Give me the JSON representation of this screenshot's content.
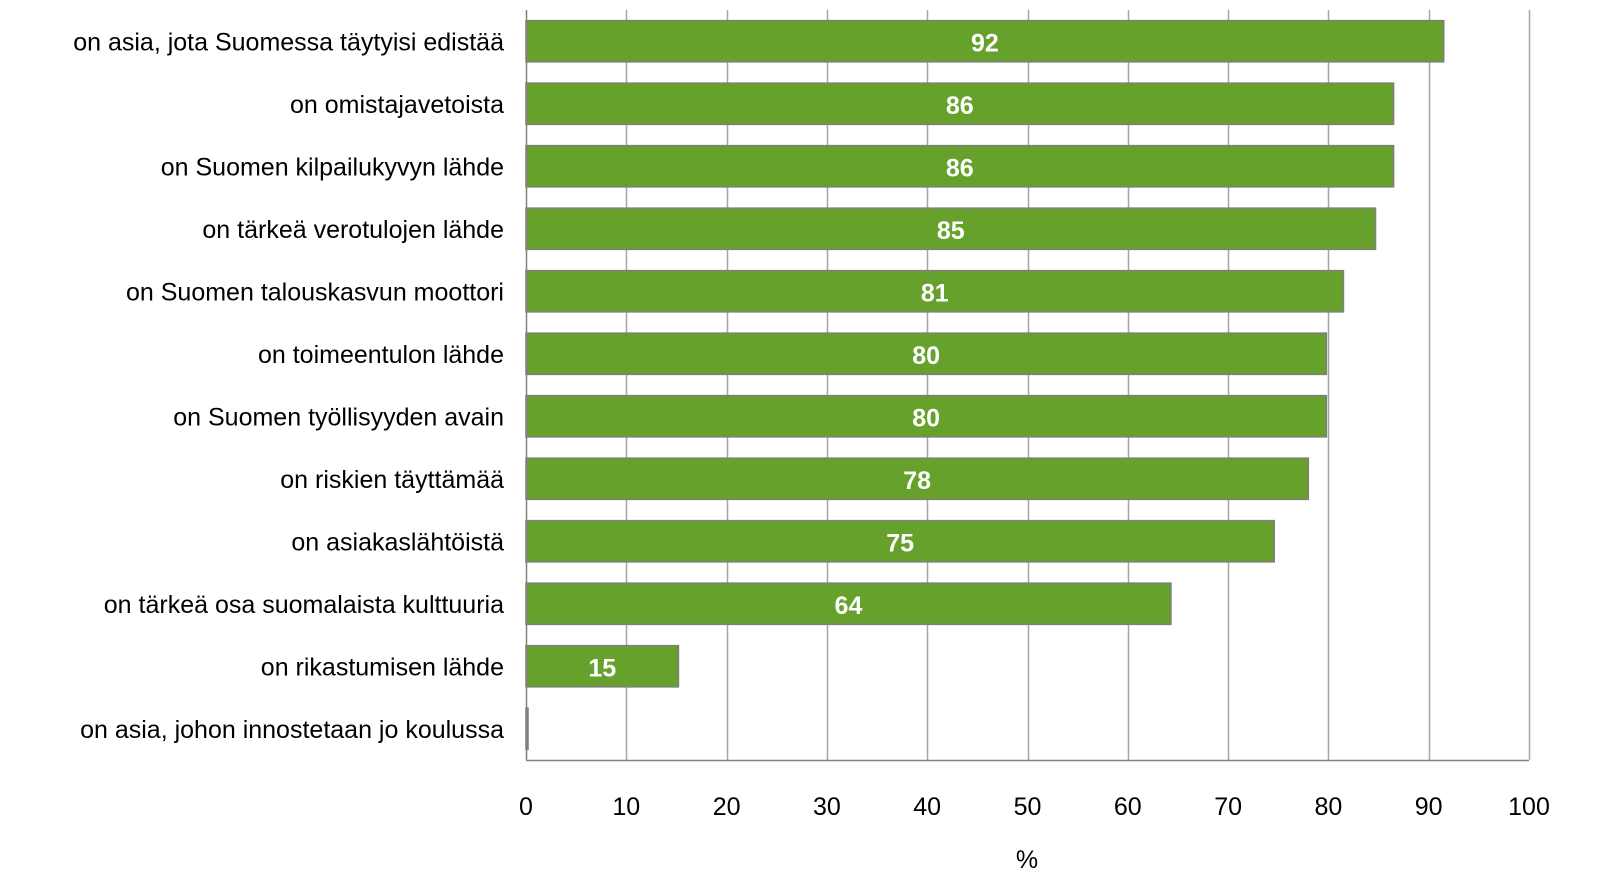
{
  "chart_data": {
    "type": "bar",
    "orientation": "horizontal",
    "categories": [
      "on asia, jota Suomessa täytyisi edistää",
      "on omistajavetoista",
      "on Suomen kilpailukyvyn lähde",
      "on tärkeä verotulojen lähde",
      "on Suomen talouskasvun moottori",
      "on toimeentulon lähde",
      "on Suomen työllisyyden avain",
      "on riskien täyttämää",
      "on asiakaslähtöistä",
      "on tärkeä osa suomalaista kulttuuria",
      "on rikastumisen lähde",
      "on asia, johon innostetaan jo koulussa"
    ],
    "values": [
      91.5,
      86.5,
      86.5,
      84.7,
      81.5,
      79.8,
      79.8,
      78.0,
      74.6,
      64.3,
      15.2,
      0.2
    ],
    "data_labels": [
      "92",
      "86",
      "86",
      "85",
      "81",
      "80",
      "80",
      "78",
      "75",
      "64",
      "15",
      ""
    ],
    "xlim": [
      0,
      100
    ],
    "xticks": [
      0,
      10,
      20,
      30,
      40,
      50,
      60,
      70,
      80,
      90,
      100
    ],
    "xlabel": "%",
    "ylabel": "",
    "title": "",
    "grid": "vertical",
    "legend": "none",
    "colors": {
      "bar_fill": "#66a12b",
      "bar_stroke": "#7f7f7f",
      "grid": "#a6a6a6",
      "axis": "#808080",
      "data_label": "#ffffff"
    }
  }
}
